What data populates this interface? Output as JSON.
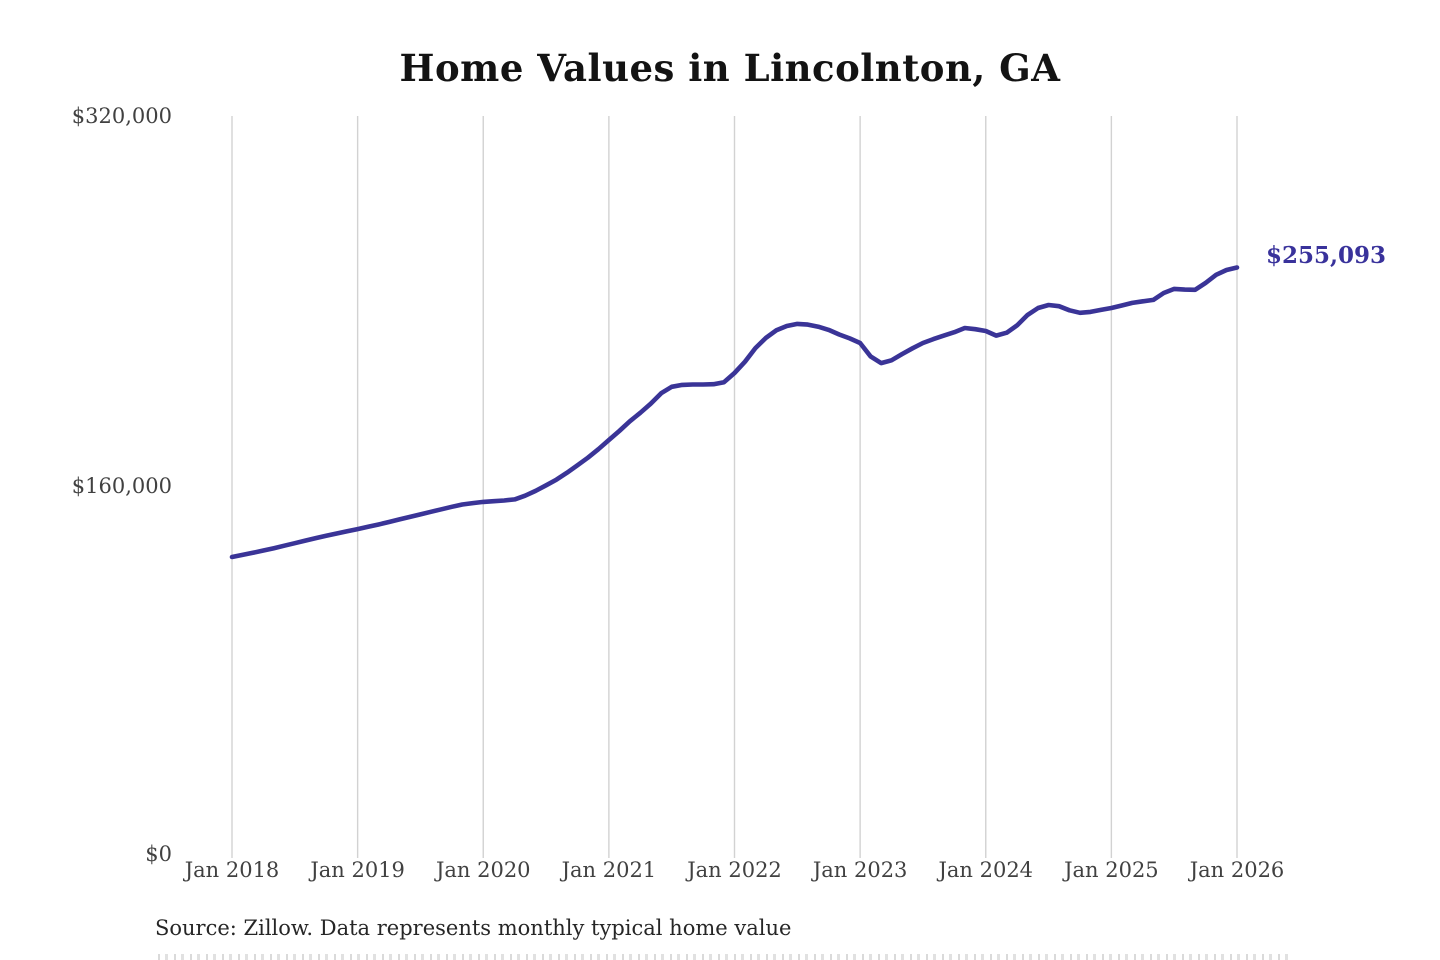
{
  "title": "Home Values in Lincolnton, GA",
  "end_label": "$255,093",
  "source_note": "Source: Zillow. Data represents monthly typical home value",
  "colors": {
    "line": "#3a3497",
    "end_label": "#39329b",
    "grid": "#d2d2d2",
    "axis_text": "#414141",
    "title_text": "#131313",
    "background": "#ffffff"
  },
  "chart_data": {
    "type": "line",
    "title": "Home Values in Lincolnton, GA",
    "interval": "monthly",
    "x_start": "Jan 2018",
    "x_end": "Jan 2026",
    "x_tick_labels": [
      "Jan 2018",
      "Jan 2019",
      "Jan 2020",
      "Jan 2021",
      "Jan 2022",
      "Jan 2023",
      "Jan 2024",
      "Jan 2025",
      "Jan 2026"
    ],
    "y_tick_labels": [
      "$0",
      "$160,000",
      "$320,000"
    ],
    "y_ticks": [
      0,
      160000,
      320000
    ],
    "ylim": [
      0,
      320000
    ],
    "grid": "vertical-only",
    "legend": "none",
    "final_value": 255093,
    "series": [
      {
        "name": "Typical home value",
        "values": [
          129400,
          130300,
          131200,
          132200,
          133200,
          134300,
          135400,
          136500,
          137600,
          138600,
          139600,
          140600,
          141500,
          142500,
          143500,
          144600,
          145700,
          146800,
          147900,
          149000,
          150100,
          151200,
          152200,
          152800,
          153300,
          153600,
          153900,
          154400,
          156000,
          158100,
          160500,
          163000,
          166000,
          169200,
          172500,
          176200,
          180200,
          184100,
          188300,
          192000,
          196000,
          200500,
          203300,
          204100,
          204300,
          204300,
          204400,
          205300,
          209300,
          214200,
          220100,
          224500,
          227800,
          229700,
          230600,
          230300,
          229400,
          228000,
          226000,
          224300,
          222300,
          216500,
          213600,
          214800,
          217500,
          220000,
          222300,
          224000,
          225500,
          227000,
          228800,
          228300,
          227500,
          225500,
          226800,
          230000,
          234500,
          237500,
          238800,
          238300,
          236500,
          235400,
          235800,
          236700,
          237500,
          238600,
          239700,
          240400,
          241000,
          244000,
          245800,
          245500,
          245400,
          248400,
          251900,
          254000,
          255093
        ]
      }
    ]
  }
}
